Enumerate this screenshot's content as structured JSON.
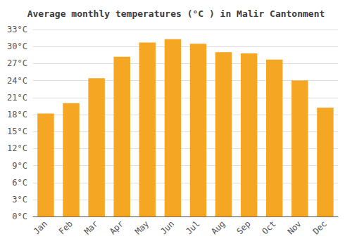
{
  "chart_data": {
    "type": "bar",
    "title": "Average monthly temperatures (°C ) in Malir Cantonment",
    "categories": [
      "Jan",
      "Feb",
      "Mar",
      "Apr",
      "May",
      "Jun",
      "Jul",
      "Aug",
      "Sep",
      "Oct",
      "Nov",
      "Dec"
    ],
    "values": [
      18.2,
      20.0,
      24.4,
      28.2,
      30.7,
      31.3,
      30.5,
      29.0,
      28.8,
      27.7,
      24.0,
      19.2
    ],
    "color": "#F5A623",
    "ylim": [
      0,
      33
    ],
    "yticks": [
      {
        "value": 0,
        "label": "0°C"
      },
      {
        "value": 3,
        "label": "3°C"
      },
      {
        "value": 6,
        "label": "6°C"
      },
      {
        "value": 9,
        "label": "9°C"
      },
      {
        "value": 12,
        "label": "12°C"
      },
      {
        "value": 15,
        "label": "15°C"
      },
      {
        "value": 18,
        "label": "18°C"
      },
      {
        "value": 21,
        "label": "21°C"
      },
      {
        "value": 24,
        "label": "24°C"
      },
      {
        "value": 27,
        "label": "27°C"
      },
      {
        "value": 30,
        "label": "30°C"
      },
      {
        "value": 33,
        "label": "33°C"
      }
    ],
    "grid": true
  }
}
